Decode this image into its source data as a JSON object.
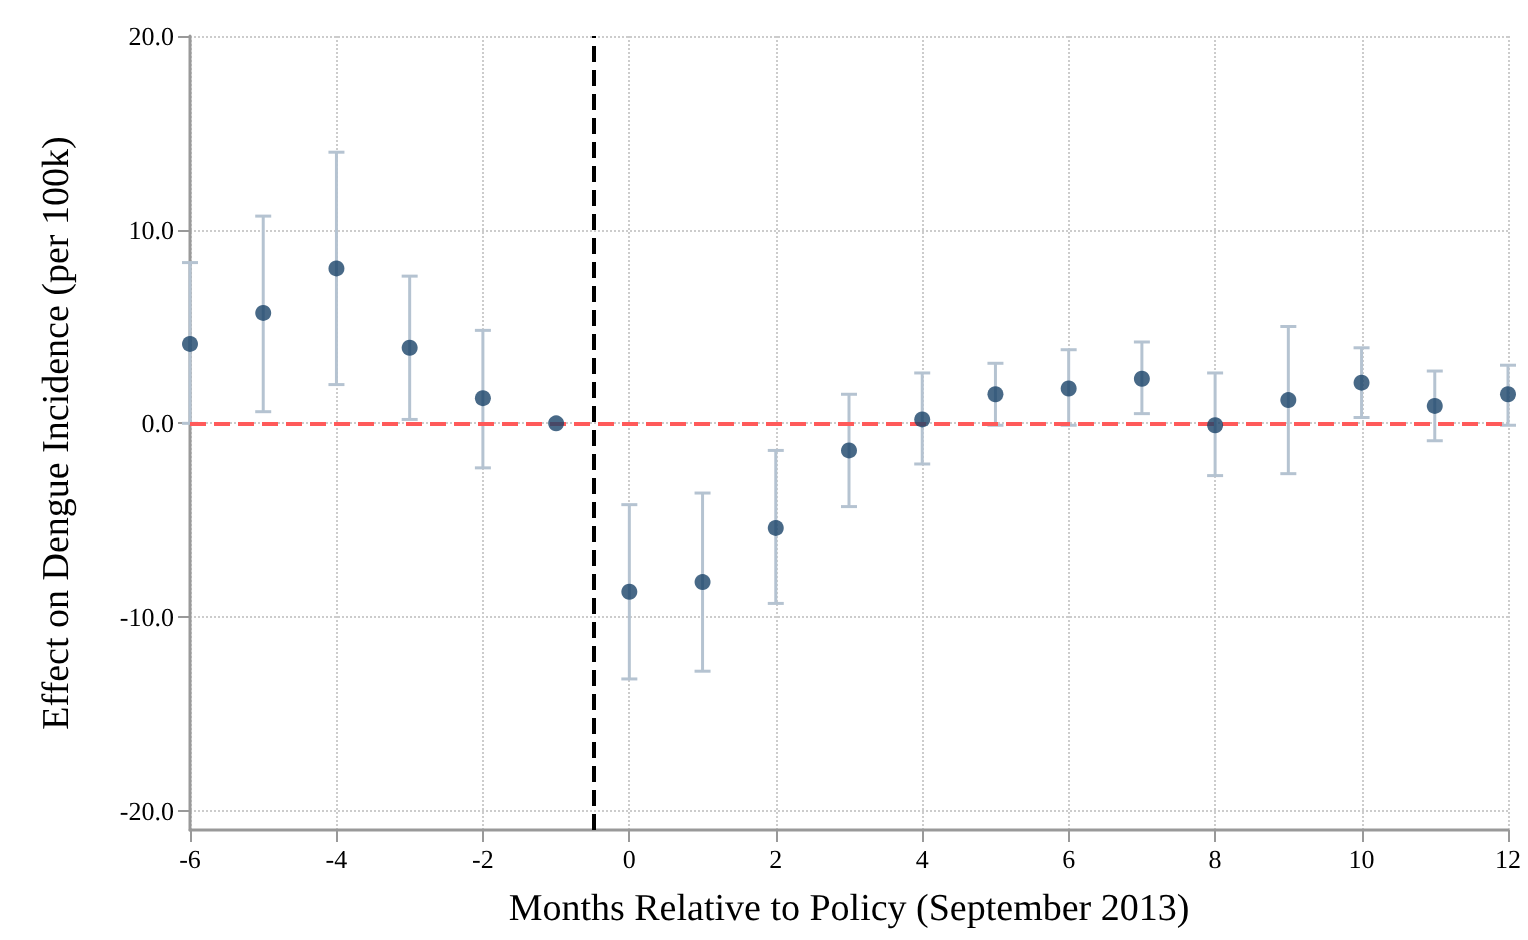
{
  "chart_data": {
    "type": "scatter",
    "xlabel": "Months Relative to Policy (September 2013)",
    "ylabel": "Effect on Dengue Incidence (per 100k)",
    "x": [
      -6,
      -5,
      -4,
      -3,
      -2,
      -1,
      0,
      1,
      2,
      3,
      4,
      5,
      6,
      7,
      8,
      9,
      10,
      11,
      12
    ],
    "series": [
      {
        "color": "#1a4369",
        "values": [
          4.1,
          5.7,
          8.0,
          3.9,
          1.3,
          0,
          -8.7,
          -8.2,
          -5.4,
          -1.4,
          0.2,
          1.5,
          1.8,
          2.3,
          -0.1,
          1.2,
          2.1,
          0.9,
          1.5
        ],
        "errors": [
          [
            0,
            8.3
          ],
          [
            0.6,
            10.7
          ],
          [
            2.0,
            14.0
          ],
          [
            0.2,
            7.6
          ],
          [
            -2.3,
            4.8
          ],
          null,
          [
            -13.2,
            -4.2
          ],
          [
            -12.8,
            -3.6
          ],
          [
            -9.3,
            -1.4
          ],
          [
            -4.3,
            1.5
          ],
          [
            -2.1,
            2.6
          ],
          [
            -0.1,
            3.1
          ],
          [
            -0.1,
            3.8
          ],
          [
            0.5,
            4.2
          ],
          [
            -2.7,
            2.6
          ],
          [
            -2.6,
            5.0
          ],
          [
            0.3,
            3.9
          ],
          [
            -0.9,
            2.7
          ],
          [
            -0.1,
            3.0
          ]
        ]
      }
    ],
    "xlim": [
      -6,
      12
    ],
    "xticks": [
      -6,
      -4,
      -2,
      0,
      2,
      4,
      6,
      8,
      10,
      12
    ],
    "ylim": [
      -21,
      20
    ],
    "yticks": [
      {
        "value": -20,
        "label": "-20.0"
      },
      {
        "value": -10,
        "label": "-10.0"
      },
      {
        "value": 0,
        "label": "0.0"
      },
      {
        "value": 10,
        "label": "10.0"
      },
      {
        "value": 20,
        "label": "20.0"
      }
    ],
    "ref_lines": [
      {
        "axis": "y",
        "value": 0,
        "label": null,
        "color": "#ff5a5a",
        "line_style": "dashed"
      },
      {
        "axis": "x",
        "value": -0.5,
        "label": null,
        "color": "#000000",
        "line_style": "dashed"
      }
    ],
    "grid": true,
    "marker": "circle"
  }
}
